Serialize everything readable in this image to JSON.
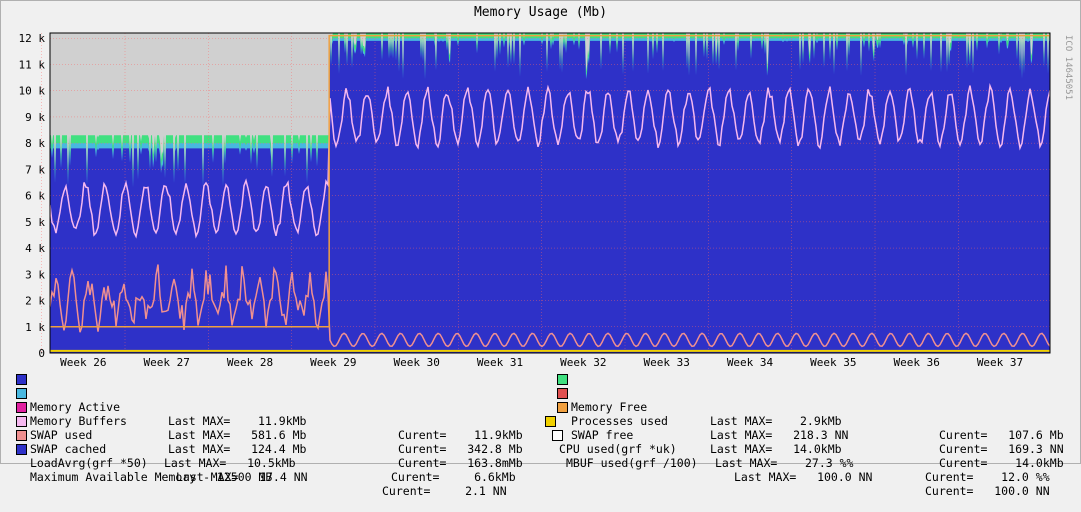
{
  "chart_data": {
    "type": "area",
    "title": "Memory Usage (Mb)",
    "side_label": "ICO 14645051",
    "y_ticks": [
      {
        "label": "0",
        "value": 0
      },
      {
        "label": "1 k",
        "value": 1000
      },
      {
        "label": "2 k",
        "value": 2000
      },
      {
        "label": "3 k",
        "value": 3000
      },
      {
        "label": "4 k",
        "value": 4000
      },
      {
        "label": "5 k",
        "value": 5000
      },
      {
        "label": "6 k",
        "value": 6000
      },
      {
        "label": "7 k",
        "value": 7000
      },
      {
        "label": "8 k",
        "value": 8000
      },
      {
        "label": "9 k",
        "value": 9000
      },
      {
        "label": "10 k",
        "value": 10000
      },
      {
        "label": "11 k",
        "value": 11000
      },
      {
        "label": "12 k",
        "value": 12000
      }
    ],
    "ylim": [
      0,
      12200
    ],
    "x_ticks": [
      "Week 26",
      "Week 27",
      "Week 28",
      "Week 29",
      "Week 30",
      "Week 31",
      "Week 32",
      "Week 33",
      "Week 34",
      "Week 35",
      "Week 36",
      "Week 37"
    ],
    "x_range_weeks": [
      25.6,
      37.6
    ],
    "grid": true,
    "max_available_memory": 12500,
    "legend_entries": [
      {
        "name": "Memory Active",
        "color": "#2e31c8",
        "last_max": "Last MAX=    11.9kMb",
        "current": "Curent=    11.9kMb"
      },
      {
        "name": "Memory Buffers",
        "color": "#48b8e0",
        "last_max": "Last MAX=   581.6 Mb",
        "current": "Curent=   342.8 Mb"
      },
      {
        "name": "SWAP used",
        "color": "#e020a0",
        "last_max": "Last MAX=   124.4 Mb",
        "current": "Curent=   163.8mMb"
      },
      {
        "name": "SWAP cached",
        "color": "#f5b8ef",
        "last_max": "Last MAX=   10.5kMb",
        "current": "Curent=     6.6kMb"
      },
      {
        "name": "LoadAvrg(grf *50)",
        "color": "#f09090",
        "last_max": "Last MAX=   17.4 NN",
        "current": "Curent=     2.1 NN"
      },
      {
        "name": "Maximum Available Memory - 12500 MB",
        "color": "#2e31c8",
        "last_max": "",
        "current": ""
      },
      {
        "name": "Memory Free",
        "color": "#40e080",
        "last_max": "Last MAX=    2.9kMb",
        "current": "Curent=   107.6 Mb"
      },
      {
        "name": "Processes used",
        "color": "#e05050",
        "last_max": "Last MAX=   218.3 NN",
        "current": "Curent=   169.3 NN"
      },
      {
        "name": "SWAP free",
        "color": "#f0a040",
        "last_max": "Last MAX=   14.0kMb",
        "current": "Curent=    14.0kMb"
      },
      {
        "name": "CPU used(grf *uk)",
        "color": "#f0d000",
        "last_max": "Last MAX=    27.3 %%",
        "current": "Curent=    12.0 %%"
      },
      {
        "name": "MBUF used(grf /100)",
        "color": "#ffffff",
        "last_max": "Last MAX=   100.0 NN",
        "current": "Curent=   100.0 NN"
      }
    ],
    "series_levels": {
      "phase1_end_week": 28.95,
      "phase1": {
        "active": 7800,
        "buffers": 200,
        "free": 300,
        "swap_cached_mean": 5500,
        "load_mean": 2000
      },
      "phase2": {
        "active": 11900,
        "buffers": 100,
        "free": 200,
        "swap_cached_mean": 9000,
        "load_mean": 500
      }
    }
  }
}
